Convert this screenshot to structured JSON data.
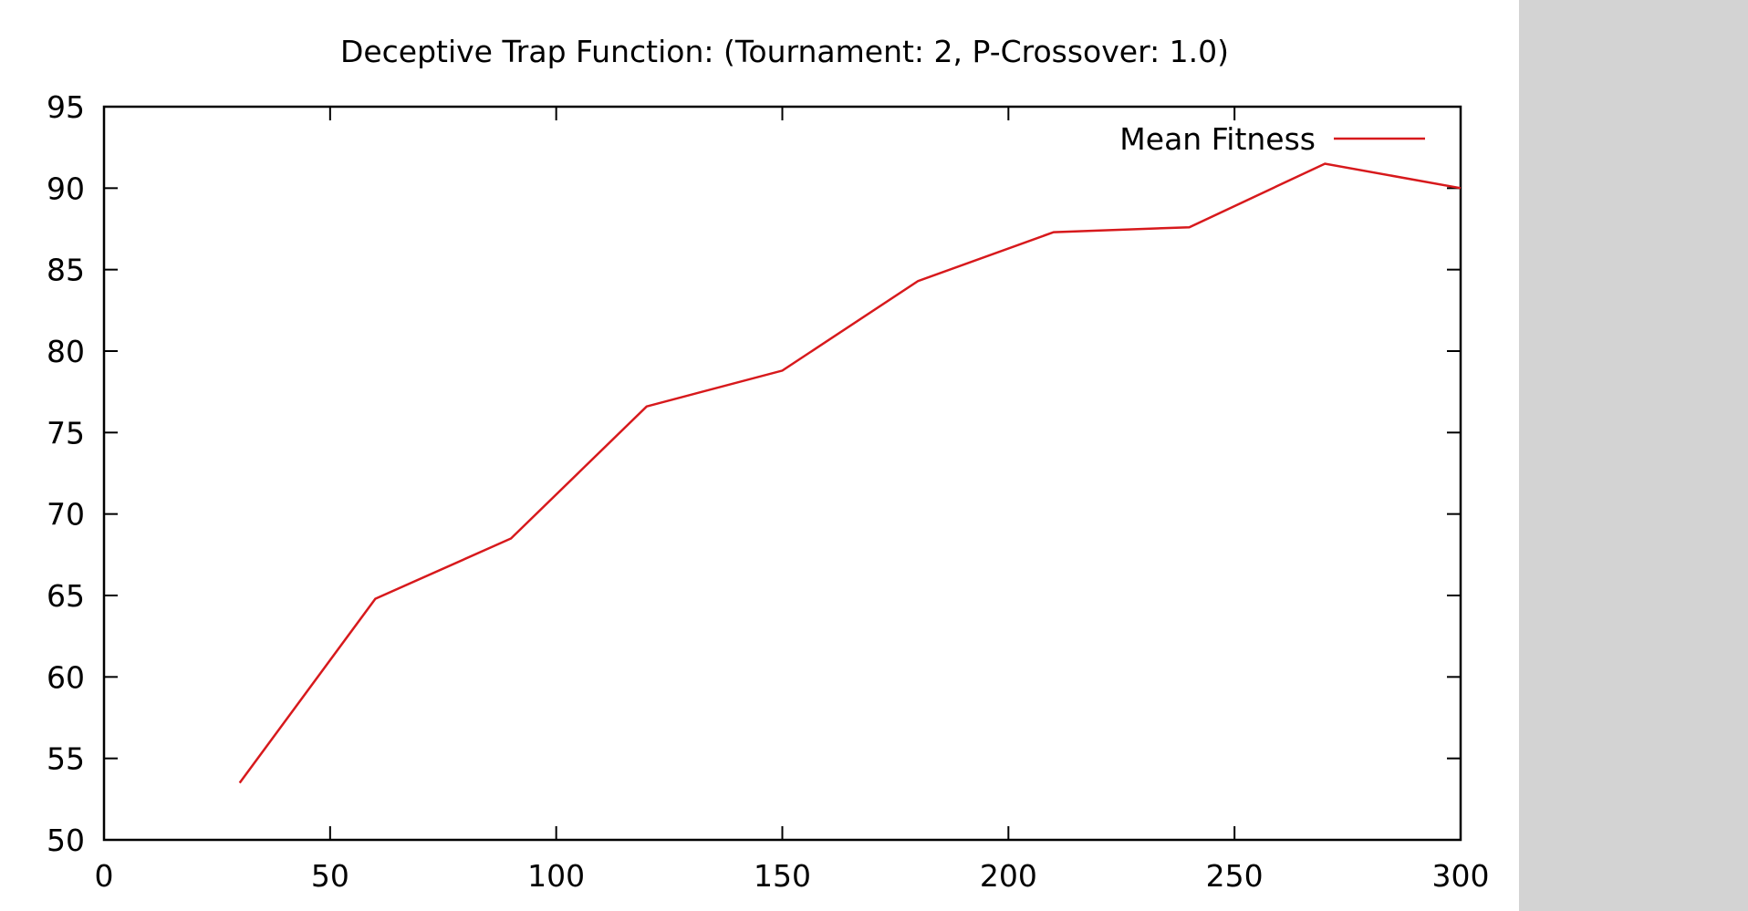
{
  "colors": {
    "series": "#d7191c",
    "axis": "#000000",
    "side_panel": "#d3d3d3",
    "background": "#ffffff"
  },
  "chart_data": {
    "type": "line",
    "title": "Deceptive Trap Function:  (Tournament: 2, P-Crossover: 1.0)",
    "xlabel": "",
    "ylabel": "",
    "xlim": [
      0,
      300
    ],
    "ylim": [
      50,
      95
    ],
    "x_ticks": [
      0,
      50,
      100,
      150,
      200,
      250,
      300
    ],
    "y_ticks": [
      50,
      55,
      60,
      65,
      70,
      75,
      80,
      85,
      90,
      95
    ],
    "grid": false,
    "legend_position": "top-right",
    "series": [
      {
        "name": "Mean Fitness",
        "x": [
          30,
          60,
          90,
          120,
          150,
          180,
          210,
          240,
          270,
          300
        ],
        "y": [
          53.5,
          64.8,
          68.5,
          76.6,
          78.8,
          84.3,
          87.3,
          87.6,
          91.5,
          90.0
        ]
      }
    ]
  }
}
